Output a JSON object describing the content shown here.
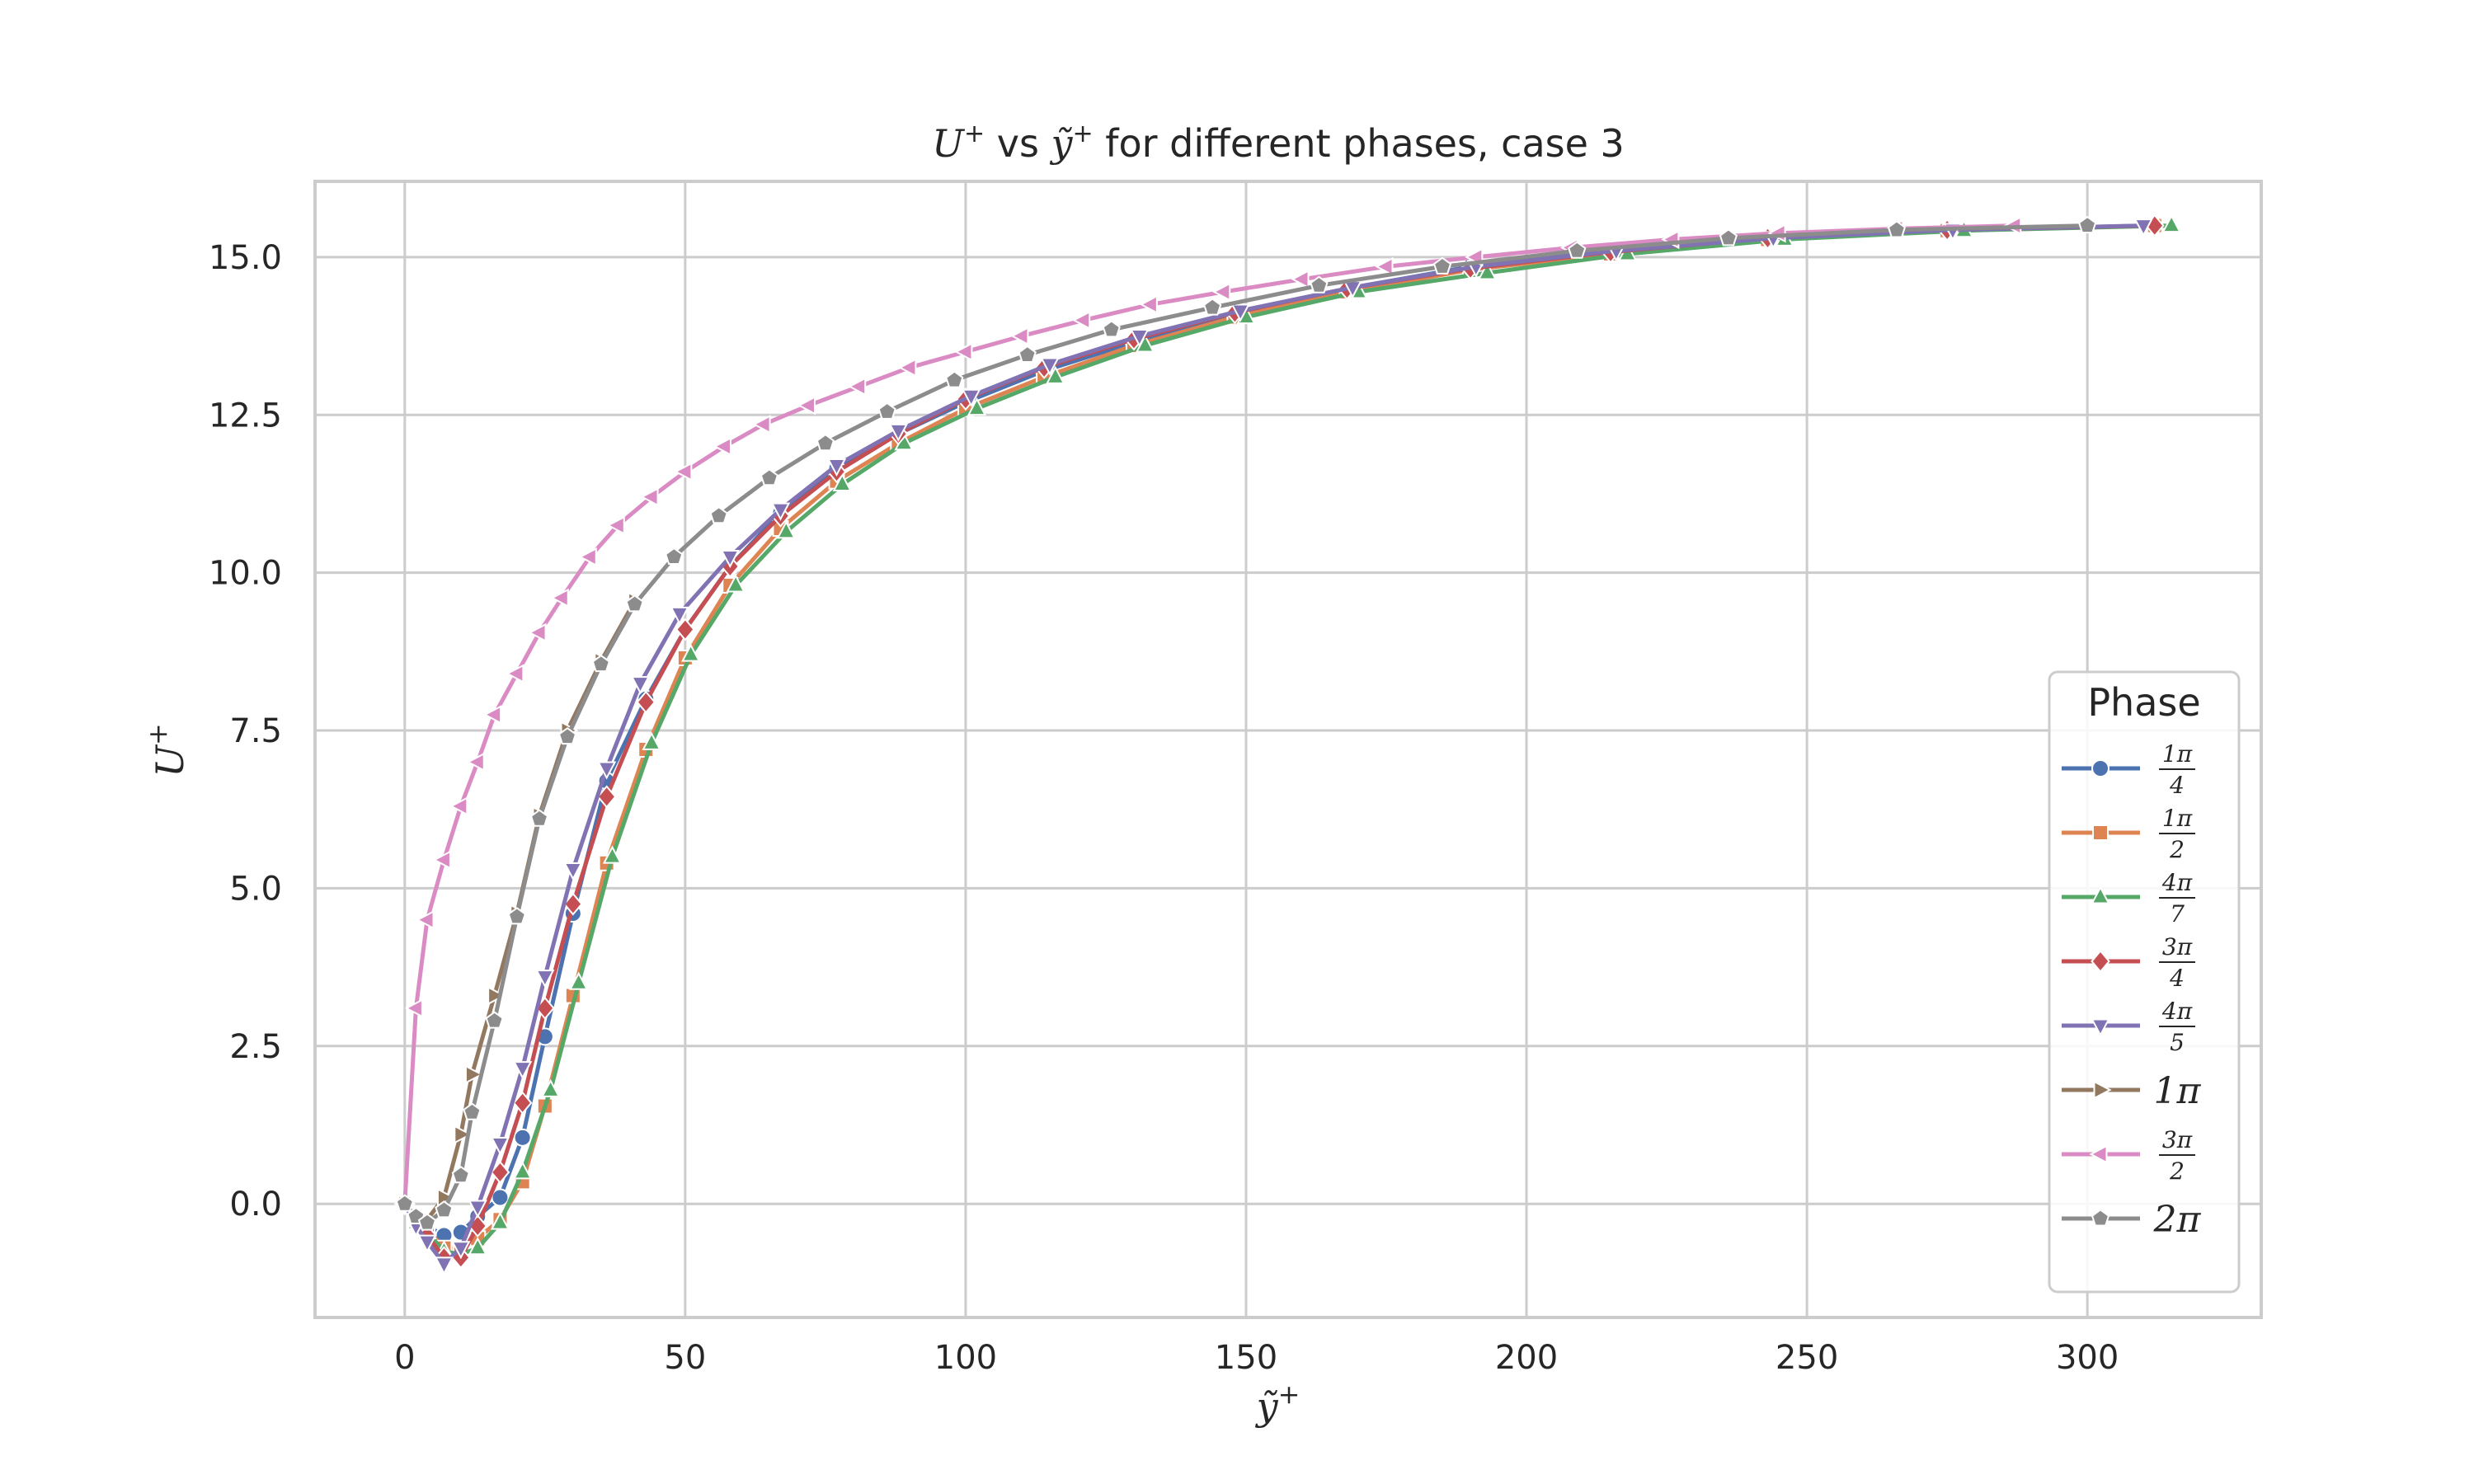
{
  "chart_data": {
    "type": "line",
    "title": {
      "prefix": "U",
      "prefix_sup": "+",
      "middle": " vs ",
      "var": "ỹ",
      "var_sup": "+",
      "suffix": " for different phases, case 3"
    },
    "xlabel": {
      "base": "ỹ",
      "sup": "+"
    },
    "ylabel": {
      "base": "U",
      "sup": "+"
    },
    "xlim": [
      -16,
      331
    ],
    "ylim": [
      -1.8,
      16.2
    ],
    "xticks": [
      0,
      50,
      100,
      150,
      200,
      250,
      300
    ],
    "xtick_labels": [
      "0",
      "50",
      "100",
      "150",
      "200",
      "250",
      "300"
    ],
    "yticks": [
      0.0,
      2.5,
      5.0,
      7.5,
      10.0,
      12.5,
      15.0
    ],
    "ytick_labels": [
      "0.0",
      "2.5",
      "5.0",
      "7.5",
      "10.0",
      "12.5",
      "15.0"
    ],
    "grid": true,
    "legend": {
      "title": "Phase",
      "position": "right",
      "entries": [
        {
          "kind": "frac",
          "num": "1π",
          "den": "4"
        },
        {
          "kind": "frac",
          "num": "1π",
          "den": "2"
        },
        {
          "kind": "frac",
          "num": "4π",
          "den": "7"
        },
        {
          "kind": "frac",
          "num": "3π",
          "den": "4"
        },
        {
          "kind": "frac",
          "num": "4π",
          "den": "5"
        },
        {
          "kind": "text",
          "text": "1π"
        },
        {
          "kind": "frac",
          "num": "3π",
          "den": "2"
        },
        {
          "kind": "text",
          "text": "2π"
        }
      ]
    },
    "series": [
      {
        "color": "#4c72b0",
        "marker": "circle",
        "x": [
          0,
          2,
          4,
          7,
          10,
          13,
          17,
          21,
          25,
          30,
          36,
          43,
          50,
          58,
          67,
          77,
          88,
          100,
          114,
          130,
          148,
          168,
          190,
          215,
          243,
          275,
          312
        ],
        "y": [
          0,
          -0.25,
          -0.35,
          -0.5,
          -0.45,
          -0.2,
          0.1,
          1.05,
          2.65,
          4.6,
          6.7,
          8.0,
          9.1,
          10.1,
          10.95,
          11.65,
          12.2,
          12.7,
          13.2,
          13.65,
          14.1,
          14.5,
          14.85,
          15.1,
          15.3,
          15.42,
          15.5
        ]
      },
      {
        "color": "#dd8452",
        "marker": "square",
        "x": [
          0,
          2,
          4,
          7,
          10,
          13,
          17,
          21,
          25,
          30,
          36,
          43,
          50,
          58,
          67,
          77,
          88,
          100,
          114,
          130,
          148,
          168,
          190,
          215,
          243,
          275,
          312
        ],
        "y": [
          0,
          -0.25,
          -0.4,
          -0.7,
          -0.7,
          -0.55,
          -0.25,
          0.35,
          1.55,
          3.3,
          5.4,
          7.2,
          8.65,
          9.8,
          10.7,
          11.45,
          12.05,
          12.6,
          13.1,
          13.6,
          14.05,
          14.45,
          14.8,
          15.05,
          15.28,
          15.42,
          15.5
        ]
      },
      {
        "color": "#55a868",
        "marker": "triangle-up",
        "x": [
          0,
          2,
          4,
          7,
          10,
          13,
          17,
          21,
          26,
          31,
          37,
          44,
          51,
          59,
          68,
          78,
          89,
          102,
          116,
          132,
          150,
          170,
          193,
          218,
          246,
          278,
          315
        ],
        "y": [
          0,
          -0.3,
          -0.45,
          -0.75,
          -0.8,
          -0.7,
          -0.3,
          0.5,
          1.8,
          3.5,
          5.5,
          7.3,
          8.7,
          9.8,
          10.65,
          11.4,
          12.05,
          12.6,
          13.1,
          13.6,
          14.05,
          14.45,
          14.75,
          15.05,
          15.28,
          15.42,
          15.5
        ]
      },
      {
        "color": "#c44e52",
        "marker": "diamond",
        "x": [
          0,
          2,
          4,
          7,
          10,
          13,
          17,
          21,
          25,
          30,
          36,
          43,
          50,
          58,
          67,
          77,
          88,
          100,
          114,
          130,
          148,
          168,
          190,
          215,
          243,
          275,
          312
        ],
        "y": [
          0,
          -0.3,
          -0.5,
          -0.85,
          -0.85,
          -0.35,
          0.5,
          1.6,
          3.1,
          4.75,
          6.45,
          7.95,
          9.1,
          10.1,
          10.9,
          11.6,
          12.2,
          12.75,
          13.25,
          13.7,
          14.12,
          14.5,
          14.82,
          15.08,
          15.3,
          15.43,
          15.5
        ]
      },
      {
        "color": "#8172b3",
        "marker": "triangle-down",
        "x": [
          0,
          2,
          4,
          7,
          10,
          13,
          17,
          21,
          25,
          30,
          36,
          42,
          49,
          58,
          67,
          77,
          88,
          101,
          115,
          131,
          149,
          169,
          191,
          216,
          244,
          276,
          310
        ],
        "y": [
          0,
          -0.35,
          -0.6,
          -0.95,
          -0.7,
          -0.05,
          0.95,
          2.15,
          3.6,
          5.3,
          6.9,
          8.25,
          9.35,
          10.25,
          11.0,
          11.7,
          12.25,
          12.8,
          13.3,
          13.75,
          14.15,
          14.52,
          14.85,
          15.1,
          15.3,
          15.43,
          15.5
        ]
      },
      {
        "color": "#937860",
        "marker": "triangle-right",
        "x": [
          0,
          2,
          4,
          7,
          10,
          12,
          16,
          20,
          24,
          29,
          35,
          41
        ],
        "y": [
          0,
          -0.2,
          -0.25,
          0.1,
          1.1,
          2.05,
          3.3,
          4.6,
          6.15,
          7.5,
          8.6,
          9.55
        ]
      },
      {
        "color": "#da8bc3",
        "marker": "triangle-left",
        "x": [
          0,
          2,
          4,
          7,
          10,
          13,
          16,
          20,
          24,
          28,
          33,
          38,
          44,
          50,
          57,
          64,
          72,
          81,
          90,
          100,
          110,
          121,
          133,
          146,
          160,
          175,
          191,
          208,
          226,
          245,
          266,
          287
        ],
        "y": [
          0,
          3.1,
          4.5,
          5.45,
          6.3,
          7.0,
          7.75,
          8.4,
          9.05,
          9.6,
          10.25,
          10.75,
          11.2,
          11.6,
          12.0,
          12.35,
          12.65,
          12.95,
          13.25,
          13.5,
          13.75,
          14.0,
          14.25,
          14.45,
          14.65,
          14.85,
          15.0,
          15.15,
          15.28,
          15.38,
          15.45,
          15.5
        ]
      },
      {
        "color": "#8c8c8c",
        "marker": "pentagon",
        "x": [
          0,
          2,
          4,
          7,
          10,
          12,
          16,
          20,
          24,
          29,
          35,
          41,
          48,
          56,
          65,
          75,
          86,
          98,
          111,
          126,
          144,
          163,
          185,
          209,
          236,
          266,
          300
        ],
        "y": [
          0,
          -0.2,
          -0.3,
          -0.1,
          0.45,
          1.45,
          2.9,
          4.55,
          6.1,
          7.4,
          8.55,
          9.5,
          10.25,
          10.9,
          11.5,
          12.05,
          12.55,
          13.05,
          13.45,
          13.85,
          14.2,
          14.55,
          14.85,
          15.1,
          15.3,
          15.43,
          15.5
        ]
      }
    ]
  }
}
